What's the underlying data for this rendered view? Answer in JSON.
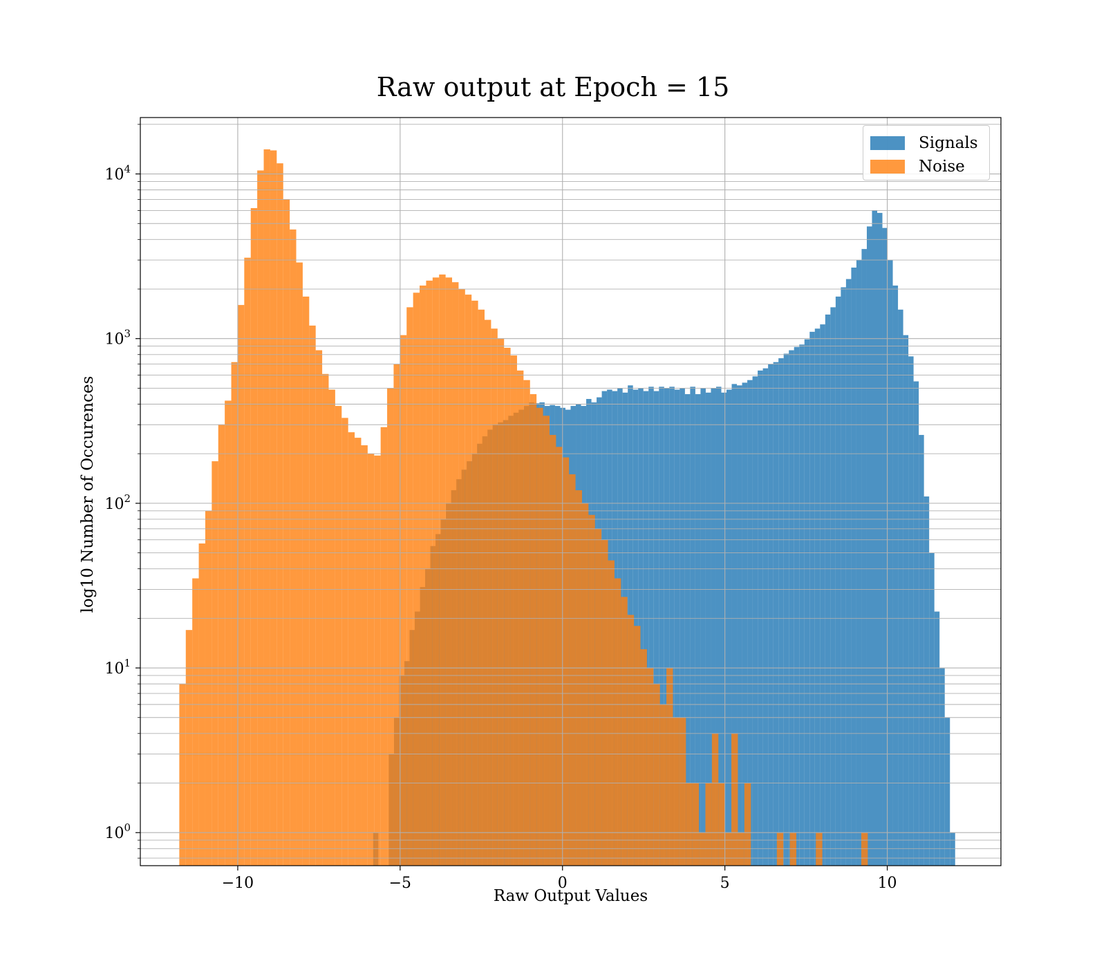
{
  "chart_data": {
    "type": "bar",
    "subtype": "overlapping-histogram",
    "title": "Raw output at Epoch = 15",
    "xlabel": "Raw Output Values",
    "ylabel": "log10 Number of Occurences",
    "x_ticks": [
      "−10",
      "−5",
      "0",
      "5",
      "10"
    ],
    "x_tick_values": [
      -10,
      -5,
      0,
      5,
      10
    ],
    "y_ticks": [
      {
        "base": "10",
        "exp": "0"
      },
      {
        "base": "10",
        "exp": "1"
      },
      {
        "base": "10",
        "exp": "2"
      },
      {
        "base": "10",
        "exp": "3"
      },
      {
        "base": "10",
        "exp": "4"
      }
    ],
    "y_tick_values": [
      1,
      10,
      100,
      1000,
      10000
    ],
    "xlim": [
      -13,
      13.5
    ],
    "ylim": [
      0.63,
      22000
    ],
    "yscale": "log",
    "grid": "major and minor",
    "legend_position": "top-right",
    "series": [
      {
        "name": "Signals",
        "color": "#1f77b4",
        "bins": [
          [
            -5.83,
            -5.67,
            1
          ],
          [
            -5.35,
            -5.19,
            3
          ],
          [
            -5.19,
            -5.03,
            5
          ],
          [
            -5.03,
            -4.87,
            9
          ],
          [
            -4.87,
            -4.71,
            11
          ],
          [
            -4.71,
            -4.55,
            17
          ],
          [
            -4.55,
            -4.39,
            22
          ],
          [
            -4.39,
            -4.23,
            31
          ],
          [
            -4.23,
            -4.07,
            40
          ],
          [
            -4.07,
            -3.91,
            55
          ],
          [
            -3.91,
            -3.75,
            65
          ],
          [
            -3.75,
            -3.59,
            80
          ],
          [
            -3.59,
            -3.43,
            100
          ],
          [
            -3.43,
            -3.27,
            120
          ],
          [
            -3.27,
            -3.11,
            140
          ],
          [
            -3.11,
            -2.95,
            160
          ],
          [
            -2.95,
            -2.79,
            180
          ],
          [
            -2.79,
            -2.63,
            200
          ],
          [
            -2.63,
            -2.47,
            230
          ],
          [
            -2.47,
            -2.31,
            255
          ],
          [
            -2.31,
            -2.15,
            280
          ],
          [
            -2.15,
            -1.99,
            300
          ],
          [
            -1.99,
            -1.83,
            310
          ],
          [
            -1.83,
            -1.67,
            320
          ],
          [
            -1.67,
            -1.51,
            340
          ],
          [
            -1.51,
            -1.35,
            355
          ],
          [
            -1.35,
            -1.19,
            370
          ],
          [
            -1.19,
            -1.03,
            390
          ],
          [
            -1.03,
            -0.87,
            410
          ],
          [
            -0.87,
            -0.71,
            405
          ],
          [
            -0.71,
            -0.55,
            410
          ],
          [
            -0.55,
            -0.39,
            390
          ],
          [
            -0.39,
            -0.23,
            395
          ],
          [
            -0.23,
            -0.07,
            390
          ],
          [
            -0.07,
            0.09,
            380
          ],
          [
            0.09,
            0.25,
            370
          ],
          [
            0.25,
            0.41,
            390
          ],
          [
            0.41,
            0.57,
            400
          ],
          [
            0.57,
            0.73,
            390
          ],
          [
            0.73,
            0.89,
            430
          ],
          [
            0.89,
            1.05,
            410
          ],
          [
            1.05,
            1.21,
            440
          ],
          [
            1.21,
            1.37,
            480
          ],
          [
            1.37,
            1.53,
            490
          ],
          [
            1.53,
            1.69,
            480
          ],
          [
            1.69,
            1.85,
            500
          ],
          [
            1.85,
            2.01,
            470
          ],
          [
            2.01,
            2.17,
            520
          ],
          [
            2.17,
            2.33,
            490
          ],
          [
            2.33,
            2.49,
            500
          ],
          [
            2.49,
            2.65,
            480
          ],
          [
            2.65,
            2.81,
            510
          ],
          [
            2.81,
            2.97,
            480
          ],
          [
            2.97,
            3.13,
            510
          ],
          [
            3.13,
            3.29,
            500
          ],
          [
            3.29,
            3.45,
            510
          ],
          [
            3.45,
            3.61,
            490
          ],
          [
            3.61,
            3.77,
            500
          ],
          [
            3.77,
            3.93,
            460
          ],
          [
            3.93,
            4.09,
            510
          ],
          [
            4.09,
            4.25,
            460
          ],
          [
            4.25,
            4.41,
            500
          ],
          [
            4.41,
            4.57,
            470
          ],
          [
            4.57,
            4.73,
            500
          ],
          [
            4.73,
            4.89,
            510
          ],
          [
            4.89,
            5.05,
            470
          ],
          [
            5.05,
            5.21,
            490
          ],
          [
            5.21,
            5.37,
            530
          ],
          [
            5.37,
            5.53,
            520
          ],
          [
            5.53,
            5.69,
            540
          ],
          [
            5.69,
            5.85,
            560
          ],
          [
            5.85,
            6.01,
            590
          ],
          [
            6.01,
            6.17,
            640
          ],
          [
            6.17,
            6.33,
            660
          ],
          [
            6.33,
            6.49,
            700
          ],
          [
            6.49,
            6.65,
            720
          ],
          [
            6.65,
            6.81,
            760
          ],
          [
            6.81,
            6.97,
            810
          ],
          [
            6.97,
            7.13,
            850
          ],
          [
            7.13,
            7.29,
            890
          ],
          [
            7.29,
            7.45,
            920
          ],
          [
            7.45,
            7.61,
            990
          ],
          [
            7.61,
            7.77,
            1100
          ],
          [
            7.77,
            7.93,
            1150
          ],
          [
            7.93,
            8.09,
            1220
          ],
          [
            8.09,
            8.25,
            1400
          ],
          [
            8.25,
            8.41,
            1550
          ],
          [
            8.41,
            8.57,
            1800
          ],
          [
            8.57,
            8.73,
            2050
          ],
          [
            8.73,
            8.89,
            2300
          ],
          [
            8.89,
            9.05,
            2700
          ],
          [
            9.05,
            9.21,
            3000
          ],
          [
            9.21,
            9.37,
            3500
          ],
          [
            9.37,
            9.53,
            4800
          ],
          [
            9.53,
            9.69,
            6000
          ],
          [
            9.69,
            9.85,
            5800
          ],
          [
            9.85,
            10.01,
            4700
          ],
          [
            10.01,
            10.17,
            3000
          ],
          [
            10.17,
            10.33,
            2100
          ],
          [
            10.33,
            10.49,
            1500
          ],
          [
            10.49,
            10.65,
            1050
          ],
          [
            10.65,
            10.81,
            780
          ],
          [
            10.81,
            10.97,
            550
          ],
          [
            10.97,
            11.13,
            260
          ],
          [
            11.13,
            11.29,
            110
          ],
          [
            11.29,
            11.45,
            50
          ],
          [
            11.45,
            11.61,
            22
          ],
          [
            11.61,
            11.77,
            10
          ],
          [
            11.77,
            11.93,
            5
          ],
          [
            11.93,
            12.09,
            1
          ]
        ]
      },
      {
        "name": "Noise",
        "color": "#ff7f0e",
        "bins": [
          [
            -11.8,
            -11.6,
            8
          ],
          [
            -11.6,
            -11.4,
            17
          ],
          [
            -11.4,
            -11.2,
            35
          ],
          [
            -11.2,
            -11.0,
            57
          ],
          [
            -11.0,
            -10.8,
            90
          ],
          [
            -10.8,
            -10.6,
            180
          ],
          [
            -10.6,
            -10.4,
            300
          ],
          [
            -10.4,
            -10.2,
            420
          ],
          [
            -10.2,
            -10.0,
            720
          ],
          [
            -10.0,
            -9.8,
            1600
          ],
          [
            -9.8,
            -9.6,
            3100
          ],
          [
            -9.6,
            -9.4,
            6200
          ],
          [
            -9.4,
            -9.2,
            10500
          ],
          [
            -9.2,
            -9.0,
            14100
          ],
          [
            -9.0,
            -8.8,
            13900
          ],
          [
            -8.8,
            -8.6,
            11600
          ],
          [
            -8.6,
            -8.4,
            7000
          ],
          [
            -8.4,
            -8.2,
            4600
          ],
          [
            -8.2,
            -8.0,
            2900
          ],
          [
            -8.0,
            -7.8,
            1800
          ],
          [
            -7.8,
            -7.6,
            1200
          ],
          [
            -7.6,
            -7.4,
            850
          ],
          [
            -7.4,
            -7.2,
            610
          ],
          [
            -7.2,
            -7.0,
            490
          ],
          [
            -7.0,
            -6.8,
            390
          ],
          [
            -6.8,
            -6.6,
            330
          ],
          [
            -6.6,
            -6.4,
            270
          ],
          [
            -6.4,
            -6.2,
            250
          ],
          [
            -6.2,
            -6.0,
            225
          ],
          [
            -6.0,
            -5.8,
            200
          ],
          [
            -5.8,
            -5.6,
            195
          ],
          [
            -5.6,
            -5.4,
            290
          ],
          [
            -5.4,
            -5.2,
            500
          ],
          [
            -5.2,
            -5.0,
            700
          ],
          [
            -5.0,
            -4.8,
            1050
          ],
          [
            -4.8,
            -4.6,
            1550
          ],
          [
            -4.6,
            -4.4,
            1900
          ],
          [
            -4.4,
            -4.2,
            2100
          ],
          [
            -4.2,
            -4.0,
            2250
          ],
          [
            -4.0,
            -3.8,
            2350
          ],
          [
            -3.8,
            -3.6,
            2450
          ],
          [
            -3.6,
            -3.4,
            2350
          ],
          [
            -3.4,
            -3.2,
            2200
          ],
          [
            -3.2,
            -3.0,
            2000
          ],
          [
            -3.0,
            -2.8,
            1850
          ],
          [
            -2.8,
            -2.6,
            1700
          ],
          [
            -2.6,
            -2.4,
            1500
          ],
          [
            -2.4,
            -2.2,
            1300
          ],
          [
            -2.2,
            -2.0,
            1150
          ],
          [
            -2.0,
            -1.8,
            1000
          ],
          [
            -1.8,
            -1.6,
            880
          ],
          [
            -1.6,
            -1.4,
            790
          ],
          [
            -1.4,
            -1.2,
            640
          ],
          [
            -1.2,
            -1.0,
            560
          ],
          [
            -1.0,
            -0.8,
            460
          ],
          [
            -0.8,
            -0.6,
            380
          ],
          [
            -0.6,
            -0.4,
            340
          ],
          [
            -0.4,
            -0.2,
            260
          ],
          [
            -0.2,
            0.0,
            220
          ],
          [
            0.0,
            0.2,
            190
          ],
          [
            0.2,
            0.4,
            150
          ],
          [
            0.4,
            0.6,
            120
          ],
          [
            0.6,
            0.8,
            100
          ],
          [
            0.8,
            1.0,
            85
          ],
          [
            1.0,
            1.2,
            70
          ],
          [
            1.2,
            1.4,
            60
          ],
          [
            1.4,
            1.6,
            45
          ],
          [
            1.6,
            1.8,
            35
          ],
          [
            1.8,
            2.0,
            27
          ],
          [
            2.0,
            2.2,
            21
          ],
          [
            2.2,
            2.4,
            18
          ],
          [
            2.4,
            2.6,
            13
          ],
          [
            2.6,
            2.8,
            10
          ],
          [
            2.8,
            3.0,
            8
          ],
          [
            3.0,
            3.2,
            6
          ],
          [
            3.2,
            3.4,
            10
          ],
          [
            3.4,
            3.6,
            5
          ],
          [
            3.6,
            3.8,
            5
          ],
          [
            3.8,
            4.0,
            2
          ],
          [
            4.0,
            4.2,
            2
          ],
          [
            4.2,
            4.4,
            1
          ],
          [
            4.4,
            4.6,
            2
          ],
          [
            4.6,
            4.8,
            4
          ],
          [
            4.8,
            5.0,
            2
          ],
          [
            5.0,
            5.2,
            1
          ],
          [
            5.2,
            5.4,
            4
          ],
          [
            5.4,
            5.6,
            1
          ],
          [
            5.6,
            5.8,
            2
          ],
          [
            6.6,
            6.8,
            1
          ],
          [
            7.0,
            7.2,
            1
          ],
          [
            7.8,
            8.0,
            1
          ],
          [
            9.2,
            9.4,
            1
          ]
        ]
      }
    ]
  }
}
